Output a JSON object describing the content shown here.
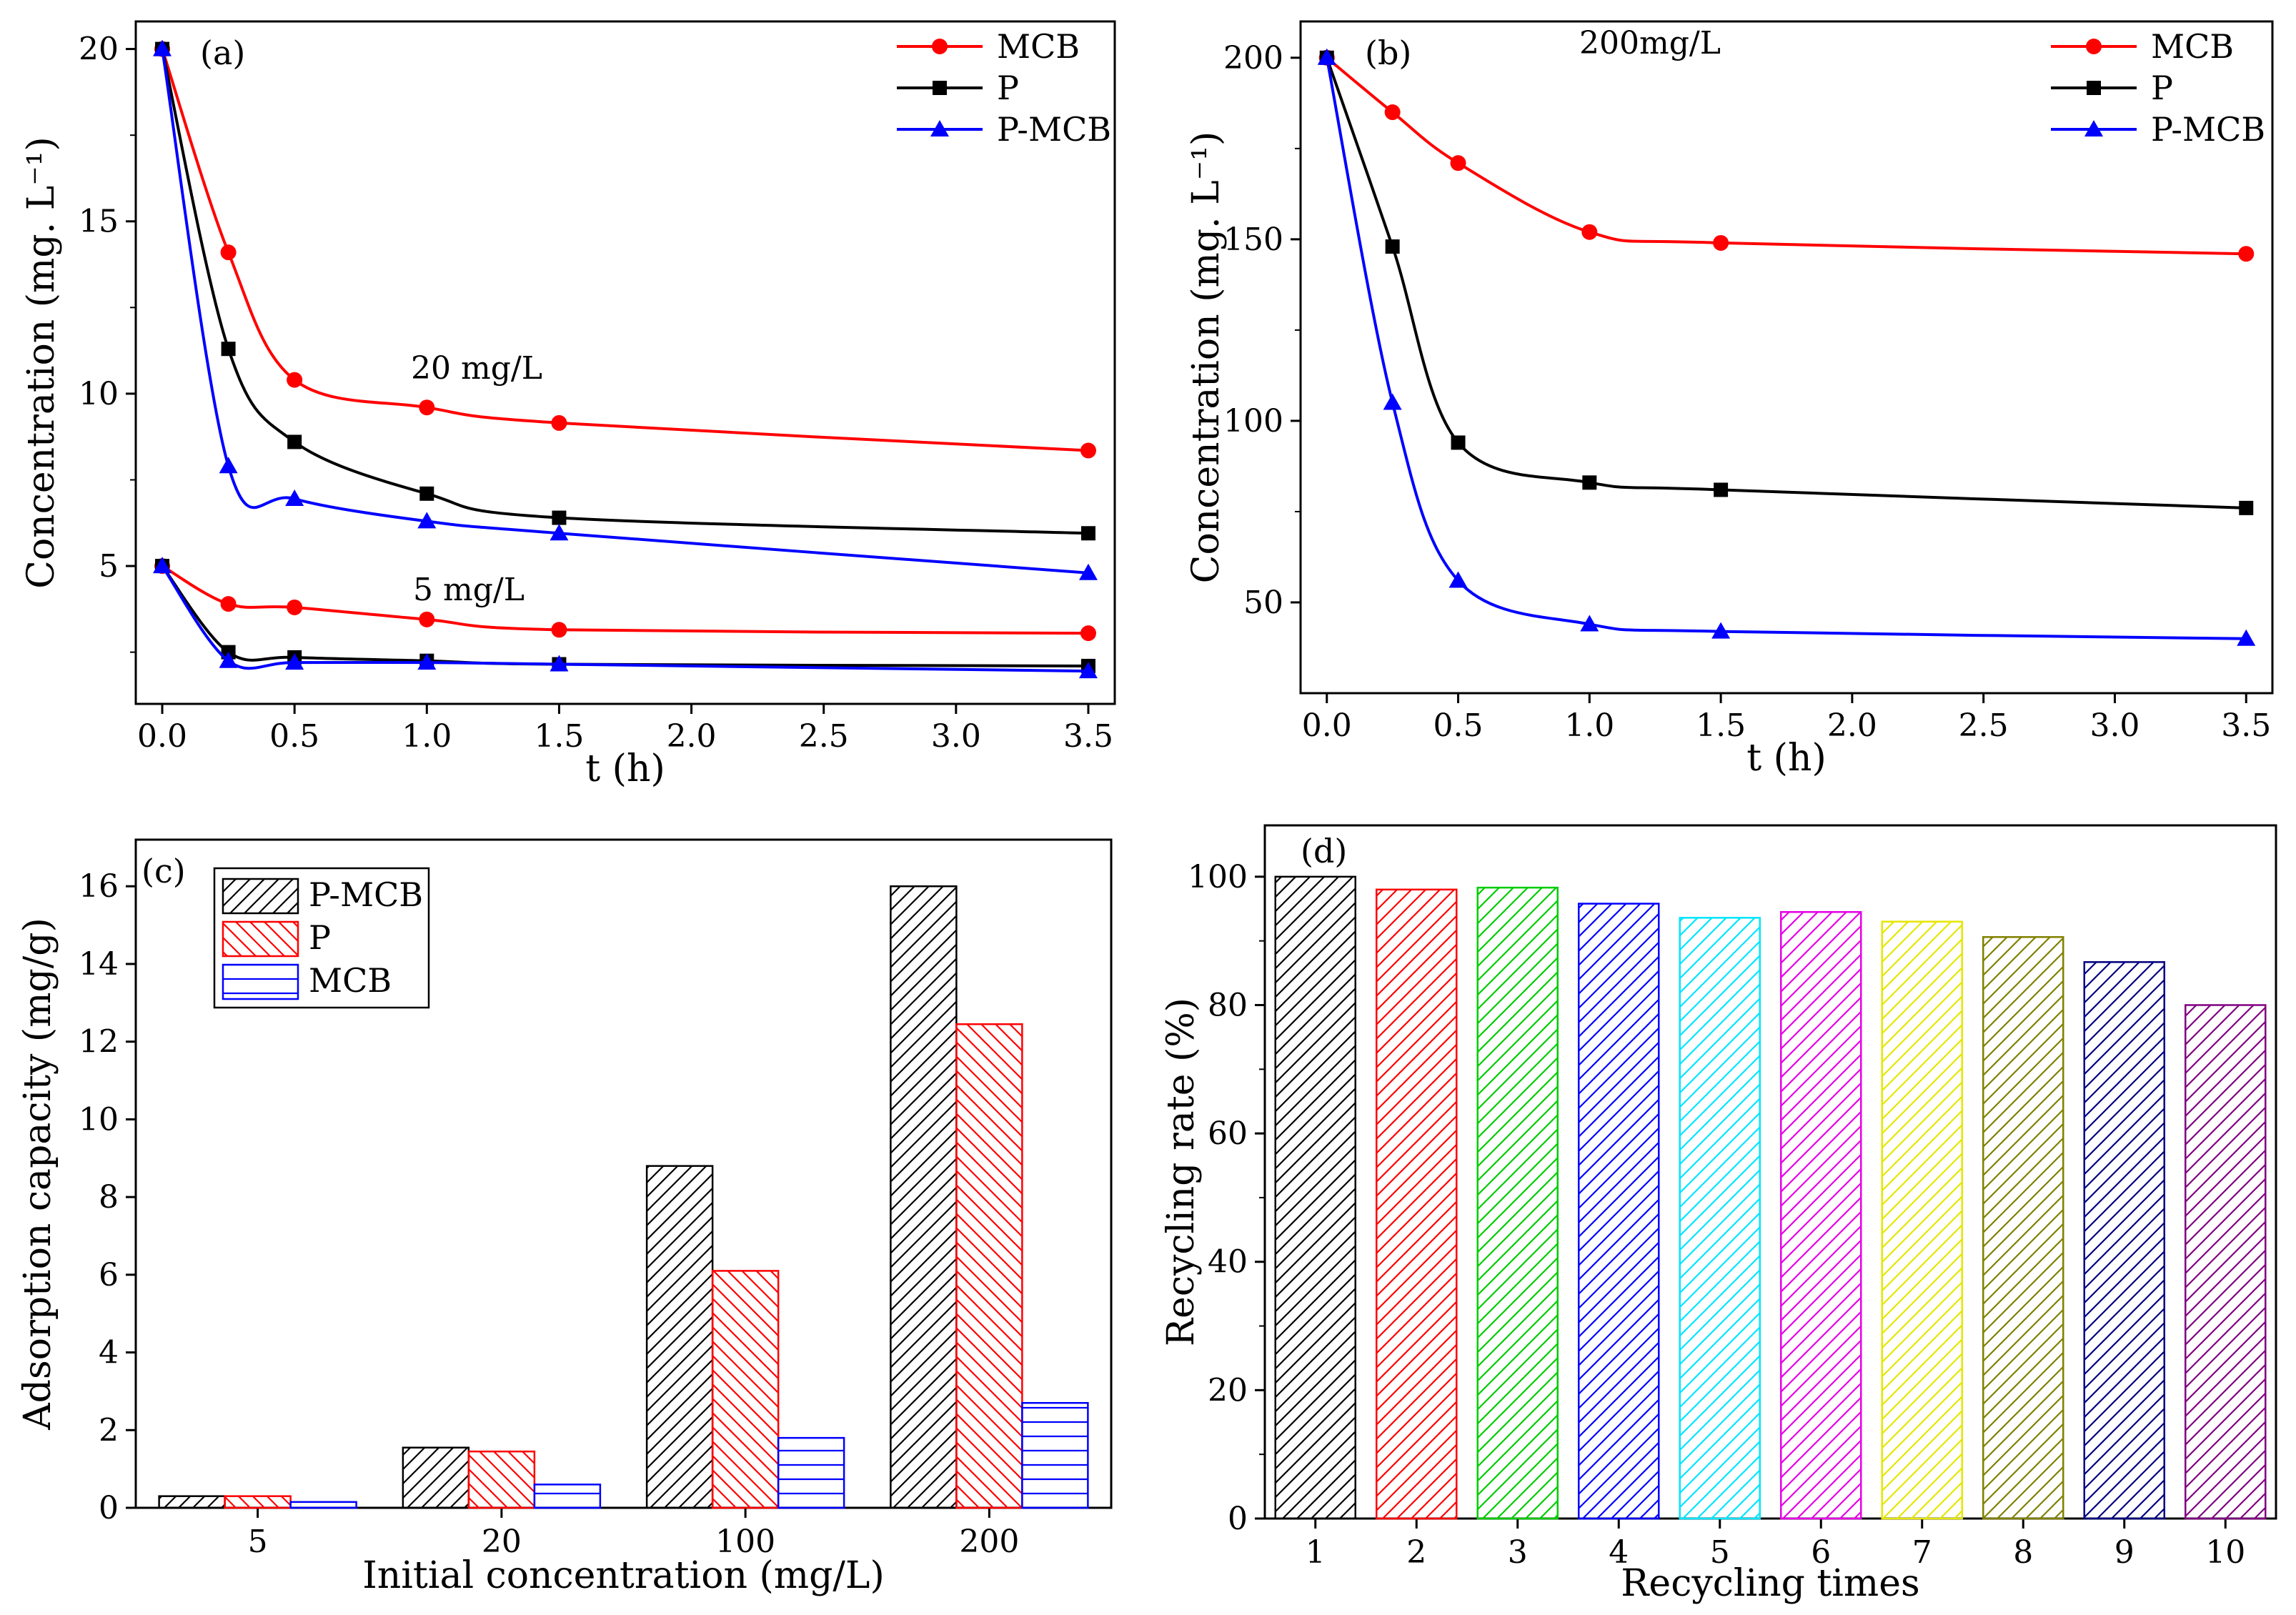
{
  "chart_data": [
    {
      "type": "line",
      "panel_label": "(a)",
      "xlabel": "t (h)",
      "ylabel": "Concentration (mg. L⁻¹)",
      "xlim": [
        -0.1,
        3.6
      ],
      "ylim": [
        1.0,
        20.8
      ],
      "xticks": [
        0.0,
        0.5,
        1.0,
        1.5,
        2.0,
        2.5,
        3.0,
        3.5
      ],
      "xtick_labels": [
        "0.0",
        "0.5",
        "1.0",
        "1.5",
        "2.0",
        "2.5",
        "3.0",
        "3.5"
      ],
      "yticks": [
        5,
        10,
        15,
        20
      ],
      "ytick_labels": [
        "5",
        "10",
        "15",
        "20"
      ],
      "legend": [
        "MCB",
        "P",
        "P-MCB"
      ],
      "legend_position": "top-right",
      "annotations": [
        "20 mg/L",
        "5 mg/L"
      ],
      "x": [
        0.0,
        0.25,
        0.5,
        1.0,
        1.5,
        3.5
      ],
      "series": [
        {
          "name": "MCB",
          "group": "20 mg/L",
          "color": "#ff0000",
          "marker": "circle",
          "values": [
            20.0,
            14.1,
            10.4,
            9.6,
            9.15,
            8.35
          ]
        },
        {
          "name": "P",
          "group": "20 mg/L",
          "color": "#000000",
          "marker": "square",
          "values": [
            20.0,
            11.3,
            8.6,
            7.1,
            6.4,
            5.95
          ]
        },
        {
          "name": "P-MCB",
          "group": "20 mg/L",
          "color": "#0000ff",
          "marker": "triangle",
          "values": [
            20.0,
            7.9,
            6.95,
            6.3,
            5.95,
            4.8
          ]
        },
        {
          "name": "MCB",
          "group": "5 mg/L",
          "color": "#ff0000",
          "marker": "circle",
          "values": [
            5.0,
            3.9,
            3.8,
            3.45,
            3.15,
            3.05
          ]
        },
        {
          "name": "P",
          "group": "5 mg/L",
          "color": "#000000",
          "marker": "square",
          "values": [
            5.0,
            2.5,
            2.35,
            2.25,
            2.15,
            2.1
          ]
        },
        {
          "name": "P-MCB",
          "group": "5 mg/L",
          "color": "#0000ff",
          "marker": "triangle",
          "values": [
            5.0,
            2.25,
            2.2,
            2.2,
            2.15,
            1.95
          ]
        }
      ]
    },
    {
      "type": "line",
      "panel_label": "(b)",
      "xlabel": "t (h)",
      "ylabel": "Concentration (mg. L⁻¹)",
      "xlim": [
        -0.1,
        3.6
      ],
      "ylim": [
        25,
        210
      ],
      "xticks": [
        0.0,
        0.5,
        1.0,
        1.5,
        2.0,
        2.5,
        3.0,
        3.5
      ],
      "xtick_labels": [
        "0.0",
        "0.5",
        "1.0",
        "1.5",
        "2.0",
        "2.5",
        "3.0",
        "3.5"
      ],
      "yticks": [
        50,
        100,
        150,
        200
      ],
      "ytick_labels": [
        "50",
        "100",
        "150",
        "200"
      ],
      "legend": [
        "MCB",
        "P",
        "P-MCB"
      ],
      "legend_position": "top-right",
      "annotations": [
        "200mg/L"
      ],
      "x": [
        0.0,
        0.25,
        0.5,
        1.0,
        1.5,
        3.5
      ],
      "series": [
        {
          "name": "MCB",
          "color": "#ff0000",
          "marker": "circle",
          "values": [
            200,
            185,
            171,
            152,
            149,
            146
          ]
        },
        {
          "name": "P",
          "color": "#000000",
          "marker": "square",
          "values": [
            200,
            148,
            94,
            83,
            81,
            76
          ]
        },
        {
          "name": "P-MCB",
          "color": "#0000ff",
          "marker": "triangle",
          "values": [
            200,
            105,
            56,
            44,
            42,
            40
          ]
        }
      ]
    },
    {
      "type": "bar",
      "panel_label": "(c)",
      "xlabel": "Initial concentration (mg/L)",
      "ylabel": "Adsorption capacity (mg/g)",
      "ylim": [
        0,
        17.2
      ],
      "yticks": [
        0,
        2,
        4,
        6,
        8,
        10,
        12,
        14,
        16
      ],
      "ytick_labels": [
        "0",
        "2",
        "4",
        "6",
        "8",
        "10",
        "12",
        "14",
        "16"
      ],
      "categories": [
        "5",
        "20",
        "100",
        "200"
      ],
      "legend": [
        "P-MCB",
        "P",
        "MCB"
      ],
      "legend_position": "top-left",
      "series": [
        {
          "name": "P-MCB",
          "color": "#000000",
          "pattern": "diagonal-right",
          "values": [
            0.3,
            1.55,
            8.8,
            16.0
          ]
        },
        {
          "name": "P",
          "color": "#ff0000",
          "pattern": "diagonal-left",
          "values": [
            0.3,
            1.45,
            6.1,
            12.45
          ]
        },
        {
          "name": "MCB",
          "color": "#0000ff",
          "pattern": "horizontal",
          "values": [
            0.15,
            0.6,
            1.8,
            2.7
          ]
        }
      ]
    },
    {
      "type": "bar",
      "panel_label": "(d)",
      "xlabel": "Recycling times",
      "ylabel": "Recycling rate (%)",
      "ylim": [
        0,
        108
      ],
      "yticks": [
        0,
        20,
        40,
        60,
        80,
        100
      ],
      "ytick_labels": [
        "0",
        "20",
        "40",
        "60",
        "80",
        "100"
      ],
      "categories": [
        "1",
        "2",
        "3",
        "4",
        "5",
        "6",
        "7",
        "8",
        "9",
        "10"
      ],
      "values": [
        100,
        98,
        98.3,
        95.8,
        93.6,
        94.5,
        93,
        90.6,
        86.7,
        80
      ],
      "colors": [
        "#000000",
        "#ff0000",
        "#00cc00",
        "#0000ff",
        "#00e5ff",
        "#e600e6",
        "#e6e600",
        "#808000",
        "#000080",
        "#800080"
      ]
    }
  ]
}
